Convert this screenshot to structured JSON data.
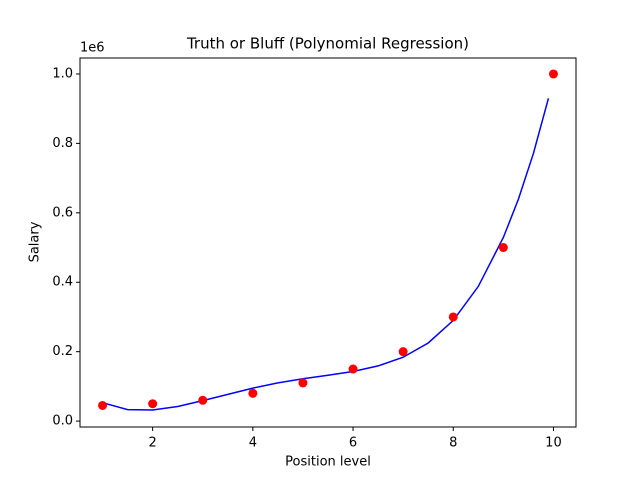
{
  "chart_data": {
    "type": "scatter",
    "title": "Truth or Bluff (Polynomial Regression)",
    "x_label": "Position level",
    "y_label": "Salary",
    "y_offset_label": "1e6",
    "xlim": [
      0.55,
      10.45
    ],
    "ylim": [
      -0.017,
      1.046
    ],
    "xticks": [
      2,
      4,
      6,
      8,
      10
    ],
    "yticks": [
      {
        "value": 0,
        "label": "0.0"
      },
      0.2,
      0.4,
      0.6,
      0.8,
      {
        "value": 1,
        "label": "1.0"
      }
    ],
    "series": [
      {
        "type": "scatter",
        "color": "#ff0000",
        "x": [
          1,
          2,
          3,
          4,
          5,
          6,
          7,
          8,
          9,
          10
        ],
        "values": [
          0.045,
          0.05,
          0.06,
          0.08,
          0.11,
          0.15,
          0.2,
          0.3,
          0.5,
          1.0
        ]
      },
      {
        "type": "line",
        "color": "#0000ff",
        "x": [
          1,
          1.5,
          2,
          2.5,
          3,
          3.5,
          4,
          4.5,
          5,
          5.5,
          6,
          6.5,
          7,
          7.5,
          8,
          8.5,
          9,
          9.3,
          9.6,
          9.9
        ],
        "values": [
          0.053,
          0.033,
          0.032,
          0.042,
          0.059,
          0.077,
          0.095,
          0.11,
          0.122,
          0.132,
          0.143,
          0.159,
          0.184,
          0.225,
          0.29,
          0.388,
          0.529,
          0.639,
          0.771,
          0.93
        ]
      }
    ]
  }
}
